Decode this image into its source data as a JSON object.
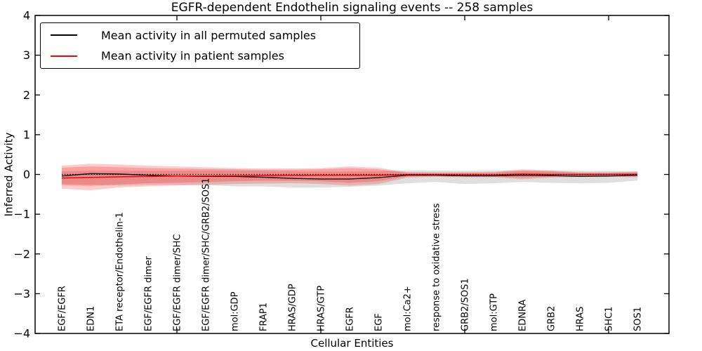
{
  "figure": {
    "title": "EGFR-dependent Endothelin signaling events -- 258 samples",
    "xlabel": "Cellular Entities",
    "ylabel": "Inferred Activity"
  },
  "legend": {
    "entries": [
      {
        "label": "Mean activity in all permuted samples",
        "color": "#000000"
      },
      {
        "label": "Mean activity in patient samples",
        "color": "#ff0000"
      }
    ],
    "position": "upper left"
  },
  "chart_data": {
    "type": "line",
    "title": "EGFR-dependent Endothelin signaling events -- 258 samples",
    "xlabel": "Cellular Entities",
    "ylabel": "Inferred Activity",
    "ylim": [
      -4,
      4
    ],
    "ytick_labels": [
      "4",
      "3",
      "2",
      "1",
      "0",
      "−1",
      "−2",
      "−3",
      "−4"
    ],
    "ytick_values": [
      4,
      3,
      2,
      1,
      0,
      -1,
      -2,
      -3,
      -4
    ],
    "xtick_values": [
      5,
      10,
      15,
      20
    ],
    "x": [
      1,
      2,
      3,
      4,
      5,
      6,
      7,
      8,
      9,
      10,
      11,
      12,
      13,
      14,
      15,
      16,
      17,
      18,
      19,
      20,
      21
    ],
    "categories": [
      "EGF/EGFR",
      "EDN1",
      "ETA receptor/Endothelin-1",
      "EGF/EGFR dimer",
      "EGF/EGFR dimer/SHC",
      "EGF/EGFR dimer/SHC/GRB2/SOS1",
      "mol:GDP",
      "FRAP1",
      "HRAS/GDP",
      "HRAS/GTP",
      "EGFR",
      "EGF",
      "mol:Ca2+",
      "response to oxidative stress",
      "GRB2/SOS1",
      "mol:GTP",
      "EDNRA",
      "GRB2",
      "HRAS",
      "SHC1",
      "SOS1"
    ],
    "zero_line": 0,
    "grid": false,
    "legend_position": "upper left",
    "series": [
      {
        "name": "Mean activity in all permuted samples",
        "color": "#000000",
        "values": [
          -0.04,
          0.02,
          0.01,
          -0.02,
          -0.04,
          -0.05,
          -0.05,
          -0.07,
          -0.1,
          -0.115,
          -0.115,
          -0.08,
          -0.02,
          -0.02,
          -0.035,
          -0.035,
          -0.02,
          -0.03,
          -0.045,
          -0.04,
          -0.02
        ]
      },
      {
        "name": "Mean activity in patient samples",
        "color": "#ff0000",
        "values": [
          -0.09,
          -0.075,
          -0.06,
          -0.05,
          -0.04,
          -0.04,
          -0.035,
          -0.03,
          -0.025,
          -0.02,
          -0.02,
          -0.02,
          -0.005,
          -0.005,
          -0.01,
          -0.01,
          0.01,
          0.0,
          0.0,
          0.0,
          0.005
        ]
      }
    ],
    "bands": [
      {
        "name": "permuted-samples-range",
        "color": "#808080",
        "opacity": 0.25,
        "upper": [
          0.08,
          0.09,
          0.09,
          0.09,
          0.09,
          0.1,
          0.1,
          0.09,
          0.08,
          0.07,
          0.07,
          0.08,
          0.1,
          0.1,
          0.09,
          0.1,
          0.1,
          0.1,
          0.09,
          0.09,
          0.08
        ],
        "lower": [
          -0.24,
          -0.26,
          -0.28,
          -0.26,
          -0.26,
          -0.27,
          -0.3,
          -0.3,
          -0.33,
          -0.33,
          -0.31,
          -0.28,
          -0.22,
          -0.19,
          -0.24,
          -0.22,
          -0.19,
          -0.21,
          -0.22,
          -0.21,
          -0.15
        ]
      },
      {
        "name": "patient-samples-range-outer",
        "color": "#ff0000",
        "opacity": 0.2,
        "upper": [
          0.22,
          0.27,
          0.25,
          0.22,
          0.2,
          0.18,
          0.16,
          0.15,
          0.15,
          0.16,
          0.2,
          0.17,
          0.06,
          0.05,
          0.05,
          0.06,
          0.13,
          0.1,
          0.05,
          0.05,
          0.07
        ],
        "lower": [
          -0.36,
          -0.4,
          -0.33,
          -0.3,
          -0.28,
          -0.26,
          -0.24,
          -0.23,
          -0.22,
          -0.24,
          -0.28,
          -0.24,
          -0.08,
          -0.06,
          -0.07,
          -0.07,
          -0.12,
          -0.08,
          -0.06,
          -0.06,
          -0.07
        ]
      },
      {
        "name": "patient-samples-range-inner",
        "color": "#ff0000",
        "opacity": 0.22,
        "upper": [
          0.17,
          0.2,
          0.18,
          0.16,
          0.15,
          0.14,
          0.13,
          0.12,
          0.12,
          0.13,
          0.16,
          0.13,
          0.04,
          0.04,
          0.04,
          0.04,
          0.09,
          0.07,
          0.04,
          0.04,
          0.05
        ],
        "lower": [
          -0.27,
          -0.29,
          -0.25,
          -0.22,
          -0.21,
          -0.19,
          -0.17,
          -0.16,
          -0.16,
          -0.17,
          -0.21,
          -0.17,
          -0.05,
          -0.04,
          -0.05,
          -0.05,
          -0.08,
          -0.05,
          -0.04,
          -0.04,
          -0.05
        ]
      }
    ]
  }
}
